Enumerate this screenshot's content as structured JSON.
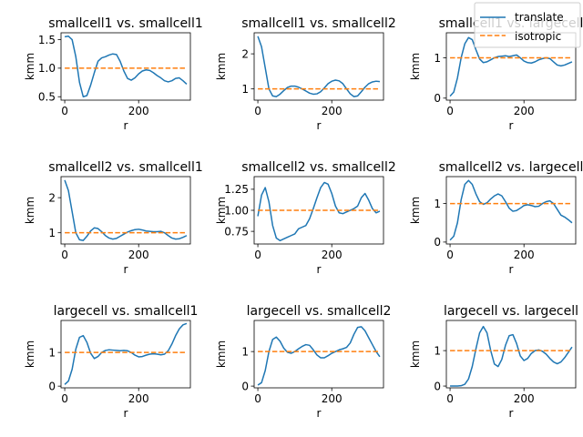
{
  "colors": {
    "translate": "#1f77b4",
    "isotropic": "#ff7f0e"
  },
  "legend": {
    "placement": "top-right",
    "entries": [
      "translate",
      "isotropic"
    ]
  },
  "chart_data": [
    {
      "type": "line",
      "title": "smallcell1 vs. smallcell1",
      "xlabel": "r",
      "ylabel": "kmm",
      "xlim": [
        -10,
        340
      ],
      "ylim": [
        0.44,
        1.62
      ],
      "xticks": [
        0,
        200
      ],
      "xtick_labels": [
        "0",
        "200"
      ],
      "yticks": [
        0.5,
        1.0,
        1.5
      ],
      "ytick_labels": [
        "0.5",
        "1.0",
        "1.5"
      ],
      "series": [
        {
          "name": "translate",
          "style": "solid",
          "x": [
            0,
            10,
            20,
            30,
            40,
            50,
            60,
            70,
            80,
            90,
            100,
            110,
            120,
            130,
            140,
            150,
            160,
            170,
            180,
            190,
            200,
            210,
            220,
            230,
            240,
            250,
            260,
            270,
            280,
            290,
            300,
            310,
            320,
            330
          ],
          "y": [
            1.55,
            1.56,
            1.5,
            1.2,
            0.75,
            0.5,
            0.52,
            0.7,
            0.92,
            1.12,
            1.18,
            1.2,
            1.23,
            1.25,
            1.24,
            1.12,
            0.95,
            0.82,
            0.79,
            0.83,
            0.9,
            0.95,
            0.97,
            0.96,
            0.92,
            0.87,
            0.83,
            0.78,
            0.76,
            0.78,
            0.82,
            0.83,
            0.78,
            0.72
          ]
        },
        {
          "name": "isotropic",
          "style": "dashed",
          "x": [
            0,
            330
          ],
          "y": [
            1.0,
            1.0
          ]
        }
      ]
    },
    {
      "type": "line",
      "title": "smallcell1 vs. smallcell2",
      "xlabel": "r",
      "ylabel": "kmm",
      "xlim": [
        -10,
        340
      ],
      "ylim": [
        0.68,
        2.6
      ],
      "xticks": [
        0,
        200
      ],
      "xtick_labels": [
        "0",
        "200"
      ],
      "yticks": [
        1,
        2
      ],
      "ytick_labels": [
        "1",
        "2"
      ],
      "series": [
        {
          "name": "translate",
          "style": "solid",
          "x": [
            0,
            10,
            20,
            30,
            40,
            50,
            60,
            70,
            80,
            90,
            100,
            110,
            120,
            130,
            140,
            150,
            160,
            170,
            180,
            190,
            200,
            210,
            220,
            230,
            240,
            250,
            260,
            270,
            280,
            290,
            300,
            310,
            320,
            330
          ],
          "y": [
            2.5,
            2.2,
            1.6,
            1.0,
            0.8,
            0.78,
            0.85,
            0.95,
            1.04,
            1.08,
            1.08,
            1.05,
            1.0,
            0.94,
            0.88,
            0.85,
            0.86,
            0.92,
            1.03,
            1.15,
            1.22,
            1.25,
            1.23,
            1.15,
            1.0,
            0.86,
            0.78,
            0.8,
            0.92,
            1.05,
            1.15,
            1.2,
            1.22,
            1.21
          ]
        },
        {
          "name": "isotropic",
          "style": "dashed",
          "x": [
            0,
            330
          ],
          "y": [
            1.0,
            1.0
          ]
        }
      ]
    },
    {
      "type": "line",
      "title": "smallcell1 vs. largecell",
      "xlabel": "r",
      "ylabel": "kmm",
      "xlim": [
        -10,
        340
      ],
      "ylim": [
        -0.05,
        1.62
      ],
      "xticks": [
        0,
        200
      ],
      "xtick_labels": [
        "0",
        "200"
      ],
      "yticks": [
        0,
        1
      ],
      "ytick_labels": [
        "0",
        "1"
      ],
      "series": [
        {
          "name": "translate",
          "style": "solid",
          "x": [
            0,
            10,
            20,
            30,
            40,
            50,
            60,
            70,
            80,
            90,
            100,
            110,
            120,
            130,
            140,
            150,
            160,
            170,
            180,
            190,
            200,
            210,
            220,
            230,
            240,
            250,
            260,
            270,
            280,
            290,
            300,
            310,
            320,
            330
          ],
          "y": [
            0.05,
            0.15,
            0.5,
            1.0,
            1.35,
            1.5,
            1.45,
            1.2,
            0.97,
            0.88,
            0.9,
            0.95,
            1.0,
            1.03,
            1.04,
            1.05,
            1.03,
            1.05,
            1.07,
            1.0,
            0.92,
            0.88,
            0.87,
            0.9,
            0.95,
            0.98,
            1.0,
            0.98,
            0.9,
            0.82,
            0.8,
            0.82,
            0.86,
            0.9
          ]
        },
        {
          "name": "isotropic",
          "style": "dashed",
          "x": [
            0,
            330
          ],
          "y": [
            1.0,
            1.0
          ]
        }
      ]
    },
    {
      "type": "line",
      "title": "smallcell2 vs. smallcell1",
      "xlabel": "r",
      "ylabel": "kmm",
      "xlim": [
        -10,
        340
      ],
      "ylim": [
        0.68,
        2.6
      ],
      "xticks": [
        0,
        200
      ],
      "xtick_labels": [
        "0",
        "200"
      ],
      "yticks": [
        1,
        2
      ],
      "ytick_labels": [
        "1",
        "2"
      ],
      "series": [
        {
          "name": "translate",
          "style": "solid",
          "x": [
            0,
            10,
            20,
            30,
            40,
            50,
            60,
            70,
            80,
            90,
            100,
            110,
            120,
            130,
            140,
            150,
            160,
            170,
            180,
            190,
            200,
            210,
            220,
            230,
            240,
            250,
            260,
            270,
            280,
            290,
            300,
            310,
            320,
            330
          ],
          "y": [
            2.5,
            2.2,
            1.6,
            1.0,
            0.8,
            0.78,
            0.9,
            1.05,
            1.14,
            1.12,
            1.03,
            0.92,
            0.85,
            0.82,
            0.84,
            0.9,
            0.96,
            1.02,
            1.06,
            1.09,
            1.1,
            1.08,
            1.05,
            1.04,
            1.03,
            1.03,
            1.04,
            1.0,
            0.92,
            0.85,
            0.82,
            0.83,
            0.87,
            0.92
          ]
        },
        {
          "name": "isotropic",
          "style": "dashed",
          "x": [
            0,
            330
          ],
          "y": [
            1.0,
            1.0
          ]
        }
      ]
    },
    {
      "type": "line",
      "title": "smallcell2 vs. smallcell2",
      "xlabel": "r",
      "ylabel": "kmm",
      "xlim": [
        -10,
        340
      ],
      "ylim": [
        0.6,
        1.4
      ],
      "xticks": [
        0,
        200
      ],
      "xtick_labels": [
        "0",
        "200"
      ],
      "yticks": [
        0.75,
        1.0,
        1.25
      ],
      "ytick_labels": [
        "0.75",
        "1.00",
        "1.25"
      ],
      "series": [
        {
          "name": "translate",
          "style": "solid",
          "x": [
            0,
            10,
            20,
            30,
            40,
            50,
            60,
            70,
            80,
            90,
            100,
            110,
            120,
            130,
            140,
            150,
            160,
            170,
            180,
            190,
            200,
            210,
            220,
            230,
            240,
            250,
            260,
            270,
            280,
            290,
            300,
            310,
            320,
            330
          ],
          "y": [
            0.93,
            1.18,
            1.27,
            1.1,
            0.82,
            0.67,
            0.64,
            0.66,
            0.68,
            0.7,
            0.72,
            0.78,
            0.8,
            0.82,
            0.9,
            1.02,
            1.15,
            1.27,
            1.33,
            1.31,
            1.2,
            1.05,
            0.97,
            0.96,
            0.98,
            1.0,
            1.02,
            1.05,
            1.15,
            1.2,
            1.12,
            1.02,
            0.97,
            0.99
          ]
        },
        {
          "name": "isotropic",
          "style": "dashed",
          "x": [
            0,
            330
          ],
          "y": [
            1.0,
            1.0
          ]
        }
      ]
    },
    {
      "type": "line",
      "title": "smallcell2 vs. largecell",
      "xlabel": "r",
      "ylabel": "kmm",
      "xlim": [
        -10,
        340
      ],
      "ylim": [
        -0.05,
        1.7
      ],
      "xticks": [
        0,
        200
      ],
      "xtick_labels": [
        "0",
        "200"
      ],
      "yticks": [
        0,
        1
      ],
      "ytick_labels": [
        "0",
        "1"
      ],
      "series": [
        {
          "name": "translate",
          "style": "solid",
          "x": [
            0,
            10,
            20,
            30,
            40,
            50,
            60,
            70,
            80,
            90,
            100,
            110,
            120,
            130,
            140,
            150,
            160,
            170,
            180,
            190,
            200,
            210,
            220,
            230,
            240,
            250,
            260,
            270,
            280,
            290,
            300,
            310,
            320,
            330
          ],
          "y": [
            0.05,
            0.15,
            0.5,
            1.1,
            1.5,
            1.6,
            1.5,
            1.25,
            1.05,
            0.98,
            1.02,
            1.12,
            1.2,
            1.25,
            1.2,
            1.05,
            0.88,
            0.8,
            0.82,
            0.88,
            0.95,
            0.97,
            0.95,
            0.92,
            0.93,
            1.0,
            1.05,
            1.07,
            1.0,
            0.85,
            0.7,
            0.65,
            0.58,
            0.5
          ]
        },
        {
          "name": "isotropic",
          "style": "dashed",
          "x": [
            0,
            330
          ],
          "y": [
            1.0,
            1.0
          ]
        }
      ]
    },
    {
      "type": "line",
      "title": "largecell vs. smallcell1",
      "xlabel": "r",
      "ylabel": "kmm",
      "xlim": [
        -10,
        340
      ],
      "ylim": [
        -0.05,
        1.95
      ],
      "xticks": [
        0,
        200
      ],
      "xtick_labels": [
        "0",
        "200"
      ],
      "yticks": [
        0,
        1
      ],
      "ytick_labels": [
        "0",
        "1"
      ],
      "series": [
        {
          "name": "translate",
          "style": "solid",
          "x": [
            0,
            10,
            20,
            30,
            40,
            50,
            60,
            70,
            80,
            90,
            100,
            110,
            120,
            130,
            140,
            150,
            160,
            170,
            180,
            190,
            200,
            210,
            220,
            230,
            240,
            250,
            260,
            270,
            280,
            290,
            300,
            310,
            320,
            330
          ],
          "y": [
            0.05,
            0.15,
            0.5,
            1.1,
            1.45,
            1.5,
            1.3,
            0.98,
            0.82,
            0.88,
            1.0,
            1.06,
            1.08,
            1.07,
            1.06,
            1.05,
            1.06,
            1.05,
            1.0,
            0.92,
            0.87,
            0.88,
            0.92,
            0.95,
            0.96,
            0.95,
            0.93,
            0.95,
            1.05,
            1.25,
            1.5,
            1.7,
            1.82,
            1.86
          ]
        },
        {
          "name": "isotropic",
          "style": "dashed",
          "x": [
            0,
            330
          ],
          "y": [
            1.0,
            1.0
          ]
        }
      ]
    },
    {
      "type": "line",
      "title": "largecell vs. smallcell2",
      "xlabel": "r",
      "ylabel": "kmm",
      "xlim": [
        -10,
        340
      ],
      "ylim": [
        -0.05,
        1.9
      ],
      "xticks": [
        0,
        200
      ],
      "xtick_labels": [
        "0",
        "200"
      ],
      "yticks": [
        0,
        1
      ],
      "ytick_labels": [
        "0",
        "1"
      ],
      "series": [
        {
          "name": "translate",
          "style": "solid",
          "x": [
            0,
            10,
            20,
            30,
            40,
            50,
            60,
            70,
            80,
            90,
            100,
            110,
            120,
            130,
            140,
            150,
            160,
            170,
            180,
            190,
            200,
            210,
            220,
            230,
            240,
            250,
            260,
            270,
            280,
            290,
            300,
            310,
            320,
            330
          ],
          "y": [
            0.03,
            0.1,
            0.45,
            1.0,
            1.35,
            1.42,
            1.3,
            1.1,
            0.98,
            0.95,
            1.0,
            1.08,
            1.15,
            1.2,
            1.18,
            1.05,
            0.9,
            0.82,
            0.82,
            0.88,
            0.95,
            1.0,
            1.05,
            1.08,
            1.12,
            1.25,
            1.5,
            1.7,
            1.72,
            1.6,
            1.4,
            1.2,
            1.0,
            0.85
          ]
        },
        {
          "name": "isotropic",
          "style": "dashed",
          "x": [
            0,
            330
          ],
          "y": [
            1.0,
            1.0
          ]
        }
      ]
    },
    {
      "type": "line",
      "title": "largecell vs. largecell",
      "xlabel": "r",
      "ylabel": "kmm",
      "xlim": [
        -10,
        340
      ],
      "ylim": [
        -0.05,
        1.85
      ],
      "xticks": [
        0,
        200
      ],
      "xtick_labels": [
        "0",
        "200"
      ],
      "yticks": [
        0,
        1
      ],
      "ytick_labels": [
        "0",
        "1"
      ],
      "series": [
        {
          "name": "translate",
          "style": "solid",
          "x": [
            0,
            10,
            20,
            30,
            40,
            50,
            60,
            70,
            80,
            90,
            100,
            110,
            120,
            130,
            140,
            150,
            160,
            170,
            180,
            190,
            200,
            210,
            220,
            230,
            240,
            250,
            260,
            270,
            280,
            290,
            300,
            310,
            320,
            330
          ],
          "y": [
            0.0,
            0.0,
            0.0,
            0.01,
            0.05,
            0.2,
            0.55,
            1.05,
            1.5,
            1.68,
            1.5,
            1.0,
            0.62,
            0.55,
            0.75,
            1.15,
            1.42,
            1.45,
            1.2,
            0.85,
            0.72,
            0.78,
            0.92,
            1.0,
            1.02,
            0.98,
            0.9,
            0.78,
            0.68,
            0.63,
            0.68,
            0.8,
            0.95,
            1.1
          ]
        },
        {
          "name": "isotropic",
          "style": "dashed",
          "x": [
            0,
            330
          ],
          "y": [
            1.0,
            1.0
          ]
        }
      ]
    }
  ]
}
